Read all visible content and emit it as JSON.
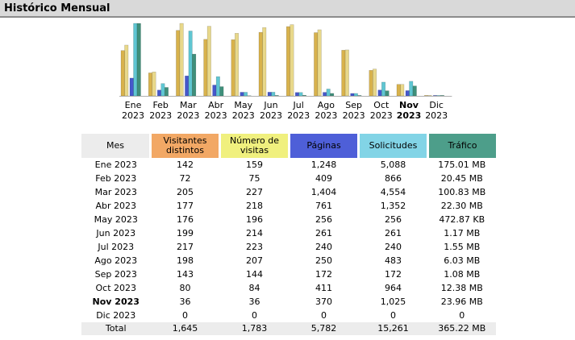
{
  "header": {
    "title": "Histórico Mensual"
  },
  "legend_colors": {
    "visitantes": "#d8b24c",
    "visitas": "#e8d88a",
    "paginas": "#4658cc",
    "solicitudes": "#5fc6d2",
    "trafico": "#3f8f7a"
  },
  "chart_data": {
    "type": "bar",
    "categories": [
      "Ene 2023",
      "Feb 2023",
      "Mar 2023",
      "Abr 2023",
      "May 2023",
      "Jun 2023",
      "Jul 2023",
      "Ago 2023",
      "Sep 2023",
      "Oct 2023",
      "Nov 2023",
      "Dic 2023"
    ],
    "series": [
      {
        "name": "Visitantes distintos",
        "values": [
          142,
          72,
          205,
          177,
          176,
          199,
          217,
          198,
          143,
          80,
          36,
          0
        ]
      },
      {
        "name": "Número de visitas",
        "values": [
          159,
          75,
          227,
          218,
          196,
          214,
          223,
          207,
          144,
          84,
          36,
          0
        ]
      },
      {
        "name": "Páginas",
        "values": [
          1248,
          409,
          1404,
          761,
          256,
          261,
          240,
          250,
          172,
          411,
          370,
          0
        ]
      },
      {
        "name": "Solicitudes",
        "values": [
          5088,
          866,
          4554,
          1352,
          256,
          261,
          240,
          483,
          172,
          964,
          1025,
          0
        ]
      },
      {
        "name": "Tráfico",
        "values": [
          175.01,
          20.45,
          100.83,
          22.3,
          0.47,
          1.17,
          1.55,
          6.03,
          1.08,
          12.38,
          23.96,
          0
        ]
      }
    ],
    "traffic_unit": "MB"
  },
  "month_labels": [
    {
      "m": "Ene",
      "y": "2023"
    },
    {
      "m": "Feb",
      "y": "2023"
    },
    {
      "m": "Mar",
      "y": "2023"
    },
    {
      "m": "Abr",
      "y": "2023"
    },
    {
      "m": "May",
      "y": "2023"
    },
    {
      "m": "Jun",
      "y": "2023"
    },
    {
      "m": "Jul",
      "y": "2023"
    },
    {
      "m": "Ago",
      "y": "2023"
    },
    {
      "m": "Sep",
      "y": "2023"
    },
    {
      "m": "Oct",
      "y": "2023"
    },
    {
      "m": "Nov",
      "y": "2023"
    },
    {
      "m": "Dic",
      "y": "2023"
    }
  ],
  "current_month_index": 10,
  "table": {
    "headers": [
      "Mes",
      "Visitantes distintos",
      "Número de visitas",
      "Páginas",
      "Solicitudes",
      "Tráfico"
    ],
    "rows": [
      [
        "Ene 2023",
        "142",
        "159",
        "1,248",
        "5,088",
        "175.01 MB"
      ],
      [
        "Feb 2023",
        "72",
        "75",
        "409",
        "866",
        "20.45 MB"
      ],
      [
        "Mar 2023",
        "205",
        "227",
        "1,404",
        "4,554",
        "100.83 MB"
      ],
      [
        "Abr 2023",
        "177",
        "218",
        "761",
        "1,352",
        "22.30 MB"
      ],
      [
        "May 2023",
        "176",
        "196",
        "256",
        "256",
        "472.87 KB"
      ],
      [
        "Jun 2023",
        "199",
        "214",
        "261",
        "261",
        "1.17 MB"
      ],
      [
        "Jul 2023",
        "217",
        "223",
        "240",
        "240",
        "1.55 MB"
      ],
      [
        "Ago 2023",
        "198",
        "207",
        "250",
        "483",
        "6.03 MB"
      ],
      [
        "Sep 2023",
        "143",
        "144",
        "172",
        "172",
        "1.08 MB"
      ],
      [
        "Oct 2023",
        "80",
        "84",
        "411",
        "964",
        "12.38 MB"
      ],
      [
        "Nov 2023",
        "36",
        "36",
        "370",
        "1,025",
        "23.96 MB"
      ],
      [
        "Dic 2023",
        "0",
        "0",
        "0",
        "0",
        "0"
      ]
    ],
    "total": [
      "Total",
      "1,645",
      "1,783",
      "5,782",
      "15,261",
      "365.22 MB"
    ]
  }
}
